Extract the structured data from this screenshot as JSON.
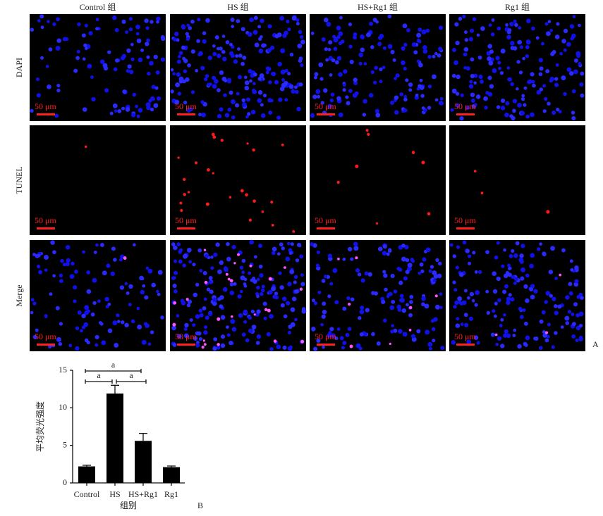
{
  "panel_a": {
    "columns": [
      "Control 组",
      "HS 组",
      "HS+Rg1 组",
      "Rg1 组"
    ],
    "rows": [
      "DAPI",
      "TUNEL",
      "Merge"
    ],
    "scale_bar": "50 μm",
    "label": "A"
  },
  "chart_data": {
    "type": "bar",
    "panel_label": "B",
    "x_label": "组别",
    "y_label": "平均荧光强度",
    "categories": [
      "Control",
      "HS",
      "HS+Rg1",
      "Rg1"
    ],
    "values": [
      2.2,
      11.9,
      5.6,
      2.1
    ],
    "errors": [
      0.15,
      1.1,
      1.0,
      0.15
    ],
    "color": "#000000",
    "ylim": [
      0,
      15
    ],
    "yticks": [
      0,
      5,
      10,
      15
    ],
    "annotations": [
      "a",
      "a",
      "a"
    ]
  }
}
